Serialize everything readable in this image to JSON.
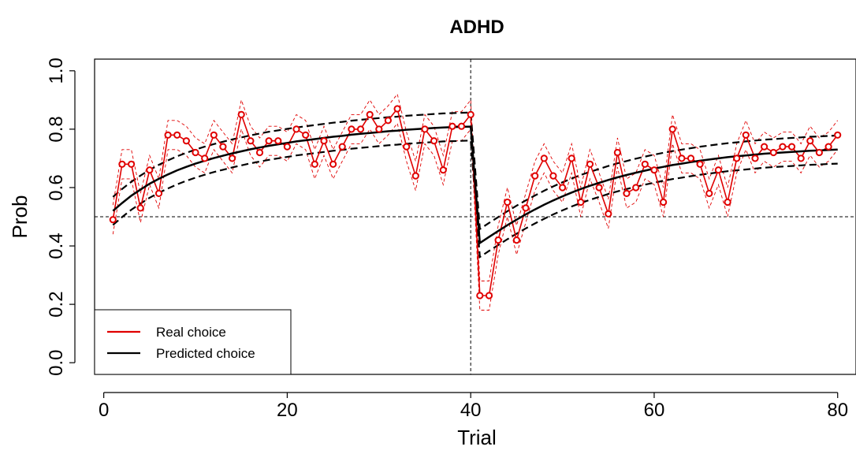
{
  "chart_data": {
    "type": "line",
    "title": "ADHD",
    "xlabel": "Trial",
    "ylabel": "Prob",
    "xlim": [
      -1,
      82
    ],
    "ylim": [
      -0.04,
      1.04
    ],
    "x_ticks": [
      0,
      20,
      40,
      60,
      80
    ],
    "x_tick_labels": [
      "0",
      "20",
      "40",
      "60",
      "80"
    ],
    "y_ticks": [
      0.0,
      0.2,
      0.4,
      0.6,
      0.8,
      1.0
    ],
    "y_tick_labels": [
      "0.0",
      "0.2",
      "0.4",
      "0.6",
      "0.8",
      "1.0"
    ],
    "reference_lines": {
      "vertical_x": 40,
      "horizontal_y": 0.5,
      "style": "dashed"
    },
    "legend": {
      "position": "bottom-left",
      "entries": [
        {
          "label": "Real choice",
          "color": "#e00000"
        },
        {
          "label": "Predicted choice",
          "color": "#000000"
        }
      ]
    },
    "x": [
      1,
      2,
      3,
      4,
      5,
      6,
      7,
      8,
      9,
      10,
      11,
      12,
      13,
      14,
      15,
      16,
      17,
      18,
      19,
      20,
      21,
      22,
      23,
      24,
      25,
      26,
      27,
      28,
      29,
      30,
      31,
      32,
      33,
      34,
      35,
      36,
      37,
      38,
      39,
      40,
      41,
      42,
      43,
      44,
      45,
      46,
      47,
      48,
      49,
      50,
      51,
      52,
      53,
      54,
      55,
      56,
      57,
      58,
      59,
      60,
      61,
      62,
      63,
      64,
      65,
      66,
      67,
      68,
      69,
      70,
      71,
      72,
      73,
      74,
      75,
      76,
      77,
      78,
      79,
      80
    ],
    "series": [
      {
        "name": "Real choice",
        "color": "#e00000",
        "markers": "open-circle",
        "band_width": 0.05,
        "values": [
          0.49,
          0.68,
          0.68,
          0.53,
          0.66,
          0.58,
          0.78,
          0.78,
          0.76,
          0.72,
          0.7,
          0.78,
          0.74,
          0.7,
          0.85,
          0.76,
          0.72,
          0.76,
          0.76,
          0.74,
          0.8,
          0.78,
          0.68,
          0.76,
          0.68,
          0.74,
          0.8,
          0.8,
          0.85,
          0.8,
          0.83,
          0.87,
          0.74,
          0.64,
          0.8,
          0.76,
          0.66,
          0.81,
          0.81,
          0.85,
          0.23,
          0.23,
          0.42,
          0.55,
          0.42,
          0.53,
          0.64,
          0.7,
          0.64,
          0.6,
          0.7,
          0.55,
          0.68,
          0.6,
          0.51,
          0.72,
          0.58,
          0.6,
          0.68,
          0.66,
          0.55,
          0.8,
          0.7,
          0.7,
          0.68,
          0.58,
          0.66,
          0.55,
          0.7,
          0.78,
          0.7,
          0.74,
          0.72,
          0.74,
          0.74,
          0.7,
          0.76,
          0.72,
          0.74,
          0.78
        ]
      },
      {
        "name": "Predicted choice",
        "color": "#000000",
        "band_width": 0.048,
        "values": [
          0.52,
          0.547,
          0.572,
          0.593,
          0.613,
          0.63,
          0.645,
          0.659,
          0.671,
          0.682,
          0.692,
          0.701,
          0.709,
          0.717,
          0.724,
          0.731,
          0.737,
          0.743,
          0.748,
          0.753,
          0.758,
          0.762,
          0.766,
          0.77,
          0.774,
          0.777,
          0.781,
          0.784,
          0.787,
          0.79,
          0.793,
          0.795,
          0.798,
          0.8,
          0.802,
          0.804,
          0.806,
          0.807,
          0.808,
          0.809,
          0.41,
          0.431,
          0.451,
          0.471,
          0.49,
          0.508,
          0.525,
          0.541,
          0.556,
          0.57,
          0.583,
          0.595,
          0.606,
          0.616,
          0.626,
          0.635,
          0.643,
          0.651,
          0.658,
          0.665,
          0.671,
          0.677,
          0.682,
          0.687,
          0.692,
          0.696,
          0.7,
          0.704,
          0.707,
          0.71,
          0.713,
          0.716,
          0.718,
          0.72,
          0.722,
          0.724,
          0.726,
          0.727,
          0.729,
          0.73
        ]
      }
    ]
  }
}
